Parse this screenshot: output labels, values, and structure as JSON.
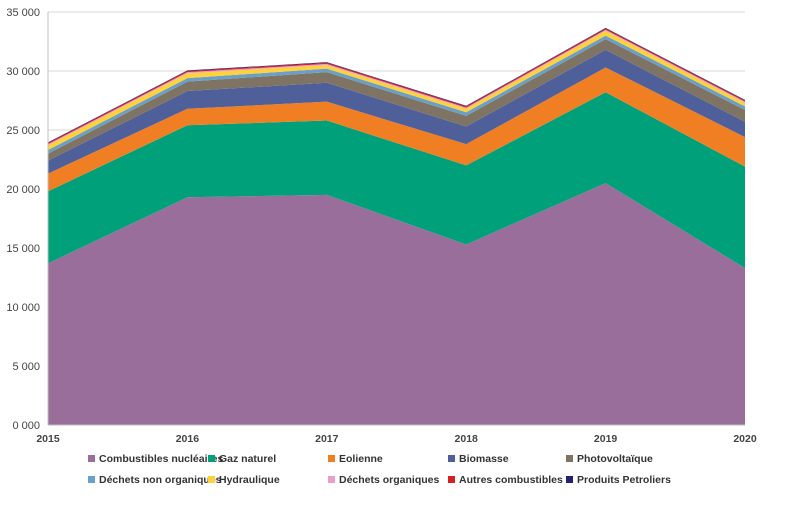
{
  "chart_data": {
    "type": "area",
    "stacked": true,
    "x": [
      "2015",
      "2016",
      "2017",
      "2018",
      "2019",
      "2020"
    ],
    "ylim": [
      0,
      35000
    ],
    "yticks": [
      0,
      5000,
      10000,
      15000,
      20000,
      25000,
      30000,
      35000
    ],
    "ytick_labels": [
      "0 000",
      "5 000",
      "10 000",
      "15 000",
      "20 000",
      "25 000",
      "30 000",
      "35 000"
    ],
    "grid": true,
    "legend_position": "bottom",
    "series": [
      {
        "name": "Combustibles nucléaires",
        "color": "#9a6e9a",
        "values": [
          13700,
          19300,
          19500,
          15300,
          20500,
          13300
        ]
      },
      {
        "name": "Gaz naturel",
        "color": "#00a07a",
        "values": [
          6100,
          6100,
          6300,
          6700,
          7700,
          8600
        ]
      },
      {
        "name": "Eolienne",
        "color": "#f07f24",
        "values": [
          1500,
          1400,
          1600,
          1800,
          2100,
          2500
        ]
      },
      {
        "name": "Biomasse",
        "color": "#4f5f9a",
        "values": [
          1100,
          1500,
          1600,
          1500,
          1500,
          1300
        ]
      },
      {
        "name": "Photovoltaïque",
        "color": "#7f7364",
        "values": [
          600,
          800,
          900,
          900,
          900,
          1000
        ]
      },
      {
        "name": "Déchets non organiques",
        "color": "#6aa0c8",
        "values": [
          300,
          300,
          300,
          300,
          300,
          300
        ]
      },
      {
        "name": "Hydraulique",
        "color": "#ffd23a",
        "values": [
          400,
          400,
          300,
          300,
          400,
          300
        ]
      },
      {
        "name": "Déchets organiques",
        "color": "#e8a0c8",
        "values": [
          100,
          100,
          100,
          100,
          100,
          100
        ]
      },
      {
        "name": "Autres combustibles",
        "color": "#d42020",
        "values": [
          100,
          100,
          100,
          100,
          100,
          100
        ]
      },
      {
        "name": "Produits Petroliers",
        "color": "#23226e",
        "values": [
          50,
          50,
          50,
          50,
          50,
          50
        ]
      }
    ]
  }
}
